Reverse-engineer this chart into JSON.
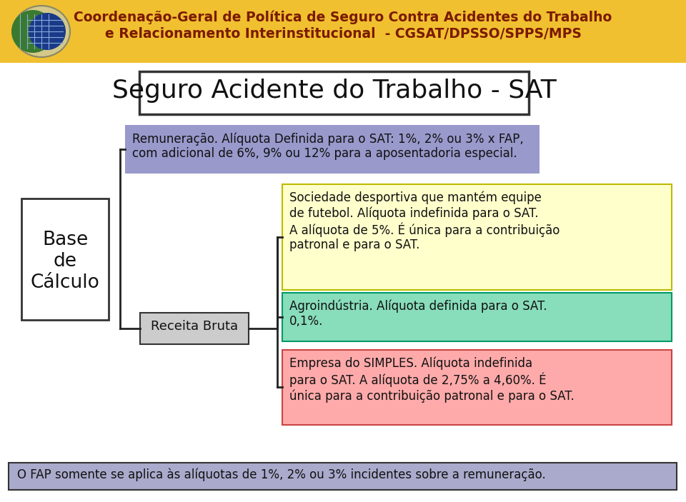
{
  "header_bg": "#F0C030",
  "header_text_line1": "Coordenação-Geral de Política de Seguro Contra Acidentes do Trabalho",
  "header_text_line2": "e Relacionamento Interinstitucional  - CGSAT/DPSSO/SPPS/MPS",
  "header_text_color": "#7B1A00",
  "header_font_size": 13.5,
  "title_text": "Seguro Acidente do Trabalho - SAT",
  "title_font_size": 24,
  "title_box_bg": "#FFFFFF",
  "title_box_edge": "#333333",
  "box_remun_text": "Remuneração. Alíquota Definida para o SAT: 1%, 2% ou 3% x FAP,\ncom adicional de 6%, 9% ou 12% para a aposentadoria especial.",
  "box_remun_bg": "#9999CC",
  "box_base_text": "Base\nde\nCálculo",
  "box_base_bg": "#FFFFFF",
  "box_base_edge": "#333333",
  "box_receita_text": "Receita Bruta",
  "box_receita_bg": "#CCCCCC",
  "box_receita_edge": "#333333",
  "box_yellow_text": "Sociedade desportiva que mantém equipe\nde futebol. Alíquota indefinida para o SAT.\nA alíquota de 5%. É única para a contribuição\npatronal e para o SAT.",
  "box_yellow_bg": "#FFFFCC",
  "box_yellow_edge": "#BBBB00",
  "box_green_text": "Agroindústria. Alíquota definida para o SAT.\n0,1%.",
  "box_green_bg": "#88DDBB",
  "box_green_edge": "#009966",
  "box_pink_text": "Empresa do SIMPLES. Alíquota indefinida\npara o SAT. A alíquota de 2,75% a 4,60%. É\núnica para a contribuição patronal e para o SAT.",
  "box_pink_bg": "#FFAAAA",
  "box_pink_edge": "#CC4444",
  "footer_text": "O FAP somente se aplica às alíquotas de 1%, 2% ou 3% incidentes sobre a remuneração.",
  "footer_bg": "#AAAACC",
  "footer_edge": "#333333",
  "bg_color": "#FFFFFF",
  "line_color": "#222222"
}
